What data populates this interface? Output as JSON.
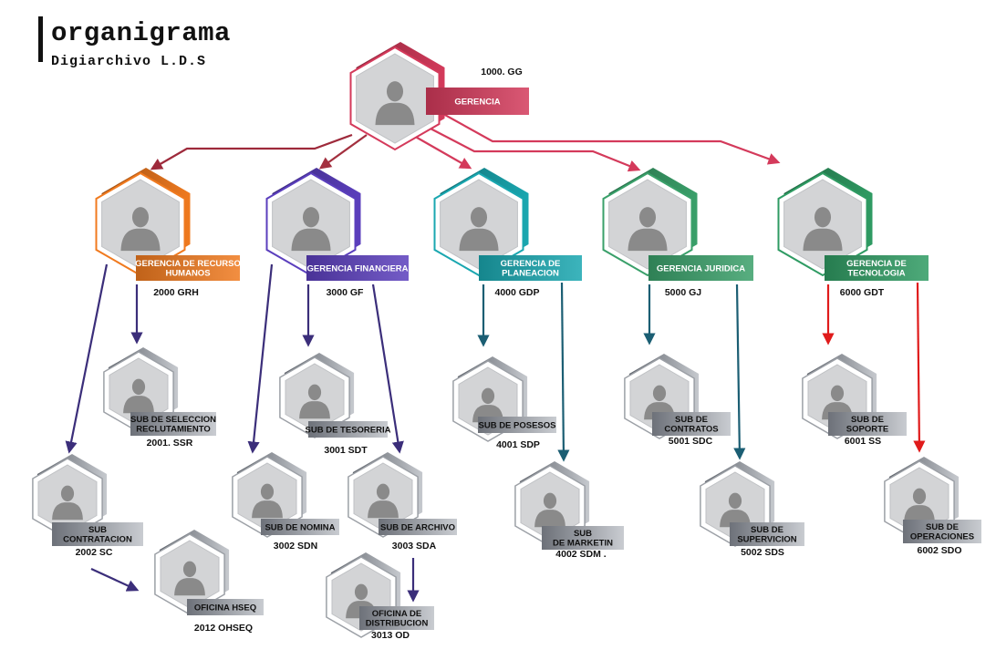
{
  "header": {
    "title": "organigrama",
    "subtitle": "Digiarchivo L.D.S"
  },
  "colors": {
    "gerencia": "#d43a5b",
    "rrhh": "#f07a1f",
    "financiera": "#5b3fbd",
    "planeacion": "#1aa7b0",
    "juridica": "#3aa06a",
    "tecnologia": "#2f9b63",
    "sub_gray": "#8f949c",
    "arrow_gerencia": "#d43a5b",
    "arrow_purple": "#3b2e7a",
    "arrow_teal": "#1b5e73",
    "arrow_red": "#e01b1b"
  },
  "nodes": [
    {
      "id": "gg",
      "lines": [
        "GERENCIA"
      ],
      "code": "1000. GG"
    },
    {
      "id": "grh",
      "lines": [
        "GERENCIA DE RECURSO",
        "HUMANOS"
      ],
      "code": "2000 GRH"
    },
    {
      "id": "gf",
      "lines": [
        "GERENCIA FINANCIERA"
      ],
      "code": "3000 GF"
    },
    {
      "id": "gdp",
      "lines": [
        "GERENCIA DE",
        "PLANEACION"
      ],
      "code": "4000 GDP"
    },
    {
      "id": "gj",
      "lines": [
        "GERENCIA JURIDICA"
      ],
      "code": "5000 GJ"
    },
    {
      "id": "gdt",
      "lines": [
        "GERENCIA DE",
        "TECNOLOGIA"
      ],
      "code": "6000 GDT"
    },
    {
      "id": "ssr",
      "lines": [
        "SUB DE SELECCION",
        "RECLUTAMIENTO"
      ],
      "code": "2001. SSR"
    },
    {
      "id": "sc",
      "lines": [
        "SUB",
        "CONTRATACION"
      ],
      "code": "2002 SC"
    },
    {
      "id": "ohseq",
      "lines": [
        "OFICINA HSEQ"
      ],
      "code": "2012 OHSEQ"
    },
    {
      "id": "sdt",
      "lines": [
        "SUB DE TESORERIA"
      ],
      "code": "3001 SDT"
    },
    {
      "id": "sdn",
      "lines": [
        "SUB DE NOMINA"
      ],
      "code": "3002 SDN"
    },
    {
      "id": "sda",
      "lines": [
        "SUB DE ARCHIVO"
      ],
      "code": "3003 SDA"
    },
    {
      "id": "od",
      "lines": [
        "OFICINA DE",
        "DISTRIBUCION"
      ],
      "code": "3013 OD"
    },
    {
      "id": "sdp",
      "lines": [
        "SUB DE POSESOS"
      ],
      "code": "4001 SDP"
    },
    {
      "id": "sdm",
      "lines": [
        "SUB",
        "DE MARKETIN"
      ],
      "code": "4002 SDM ."
    },
    {
      "id": "sdc",
      "lines": [
        "SUB DE",
        "CONTRATOS"
      ],
      "code": "5001 SDC"
    },
    {
      "id": "sds",
      "lines": [
        "SUB DE",
        "SUPERVICION"
      ],
      "code": "5002 SDS"
    },
    {
      "id": "ss",
      "lines": [
        "SUB DE",
        "SOPORTE"
      ],
      "code": "6001 SS"
    },
    {
      "id": "sdo",
      "lines": [
        "SUB DE",
        "OPERACIONES"
      ],
      "code": "6002 SDO"
    }
  ],
  "connections": [
    {
      "from": "gg",
      "to": "grh"
    },
    {
      "from": "gg",
      "to": "gf"
    },
    {
      "from": "gg",
      "to": "gdp"
    },
    {
      "from": "gg",
      "to": "gj"
    },
    {
      "from": "gg",
      "to": "gdt"
    },
    {
      "from": "grh",
      "to": "ssr"
    },
    {
      "from": "grh",
      "to": "sc"
    },
    {
      "from": "sc",
      "to": "ohseq"
    },
    {
      "from": "gf",
      "to": "sdt"
    },
    {
      "from": "gf",
      "to": "sdn"
    },
    {
      "from": "gf",
      "to": "sda"
    },
    {
      "from": "sda",
      "to": "od"
    },
    {
      "from": "gdp",
      "to": "sdp"
    },
    {
      "from": "gdp",
      "to": "sdm"
    },
    {
      "from": "gj",
      "to": "sdc"
    },
    {
      "from": "gj",
      "to": "sds"
    },
    {
      "from": "gdt",
      "to": "ss"
    },
    {
      "from": "gdt",
      "to": "sdo"
    }
  ]
}
